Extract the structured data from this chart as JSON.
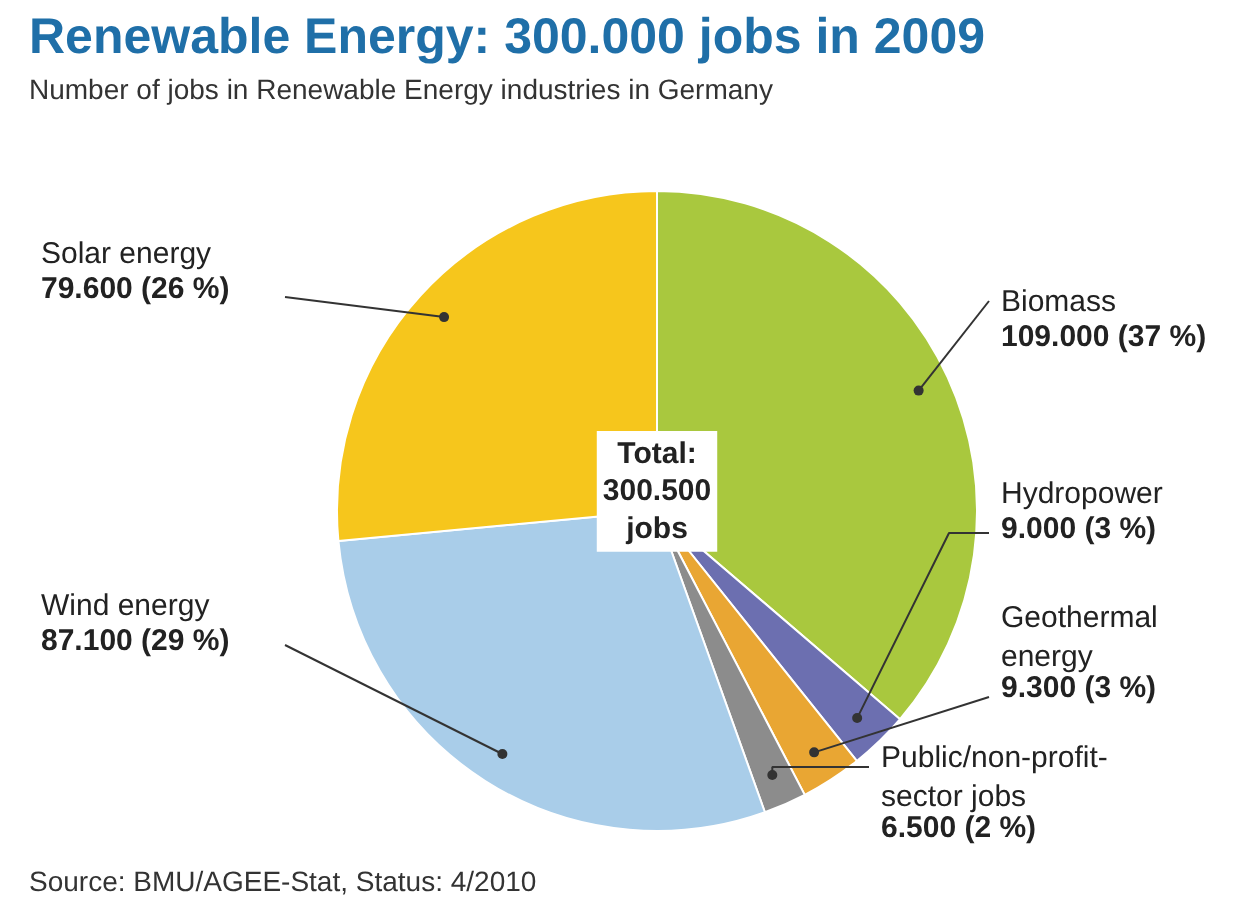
{
  "chart_data": {
    "type": "pie",
    "title": "Renewable Energy: 300.000 jobs in 2009",
    "subtitle": "Number of jobs in Renewable Energy industries in Germany",
    "categories": [
      "Biomass",
      "Hydropower",
      "Geothermal energy",
      "Public/non-profit-sector jobs",
      "Wind energy",
      "Solar energy"
    ],
    "values": [
      109000,
      9000,
      9300,
      6500,
      87100,
      79600
    ],
    "colors": [
      "#a9c83e",
      "#6c6fb0",
      "#e9a633",
      "#8c8c8c",
      "#a9cde9",
      "#f6c61c"
    ],
    "value_labels": [
      "109.000 (37 %)",
      "9.000 (3 %)",
      "9.300 (3 %)",
      "6.500 (2 %)",
      "87.100 (29 %)",
      "79.600 (26 %)"
    ],
    "annotations": [
      "Total:\n300.500\njobs",
      "Source: BMU/AGEE-Stat, Status: 4/2010"
    ]
  }
}
